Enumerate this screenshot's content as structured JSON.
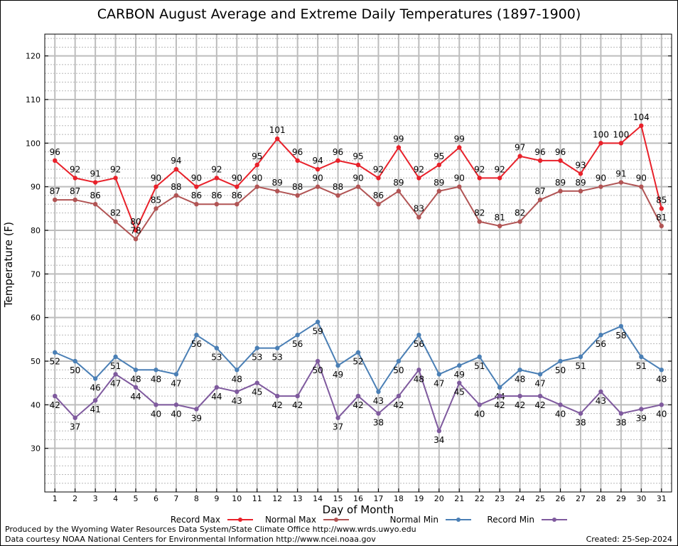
{
  "chart_data": {
    "type": "line",
    "title": "CARBON August Average and Extreme Daily Temperatures (1897-1900)",
    "xlabel": "Day of Month",
    "ylabel": "Temperature (F)",
    "ylim": [
      20,
      125
    ],
    "yticks": [
      30,
      40,
      50,
      60,
      70,
      80,
      90,
      100,
      110,
      120
    ],
    "grid": true,
    "legend_position": "bottom",
    "x": [
      1,
      2,
      3,
      4,
      5,
      6,
      7,
      8,
      9,
      10,
      11,
      12,
      13,
      14,
      15,
      16,
      17,
      18,
      19,
      20,
      21,
      22,
      23,
      24,
      25,
      26,
      27,
      28,
      29,
      30,
      31
    ],
    "series": [
      {
        "name": "Record Max",
        "color": "#e8212a",
        "values": [
          96,
          92,
          91,
          92,
          80,
          90,
          94,
          90,
          92,
          90,
          95,
          101,
          96,
          94,
          96,
          95,
          92,
          99,
          92,
          95,
          99,
          92,
          92,
          97,
          96,
          96,
          93,
          100,
          100,
          104,
          85
        ]
      },
      {
        "name": "Normal Max",
        "color": "#b15454",
        "values": [
          87,
          87,
          86,
          82,
          78,
          85,
          88,
          86,
          86,
          86,
          90,
          89,
          88,
          90,
          88,
          90,
          86,
          89,
          83,
          89,
          90,
          82,
          81,
          82,
          87,
          89,
          89,
          90,
          91,
          90,
          81
        ]
      },
      {
        "name": "Normal Min",
        "color": "#4a7fb5",
        "values": [
          52,
          50,
          46,
          51,
          48,
          48,
          47,
          56,
          53,
          48,
          53,
          53,
          56,
          59,
          49,
          52,
          43,
          50,
          56,
          47,
          49,
          51,
          44,
          48,
          47,
          50,
          51,
          56,
          58,
          51,
          48
        ]
      },
      {
        "name": "Record Min",
        "color": "#7f5a9e",
        "values": [
          42,
          37,
          41,
          47,
          44,
          40,
          40,
          39,
          44,
          43,
          45,
          42,
          42,
          50,
          37,
          42,
          38,
          42,
          48,
          34,
          45,
          40,
          42,
          42,
          42,
          40,
          38,
          43,
          38,
          39,
          40
        ]
      }
    ]
  },
  "footer": {
    "credit_line1": "Produced by the Wyoming Water Resources Data System/State Climate Office http://www.wrds.uwyo.edu",
    "credit_line2": "Data courtesy NOAA National Centers for Environmental Information http://www.ncei.noaa.gov",
    "created": "Created:  25-Sep-2024"
  }
}
